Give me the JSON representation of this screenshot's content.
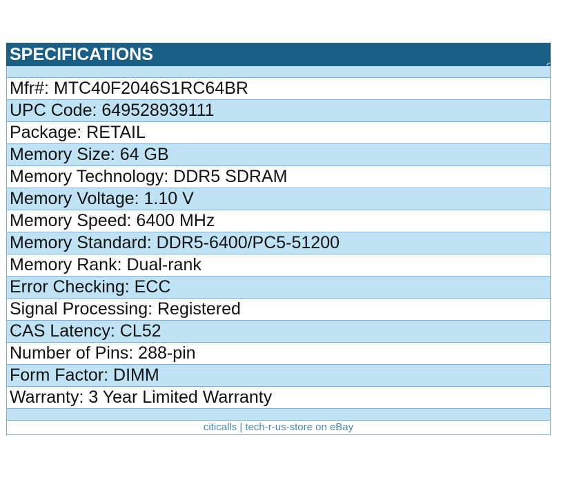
{
  "header": {
    "title": "SPECIFICATIONS"
  },
  "specs": [
    "Mfr#: MTC40F2046S1RC64BR",
    "UPC Code: 649528939111",
    "Package: RETAIL",
    "Memory Size: 64 GB",
    "Memory Technology: DDR5 SDRAM",
    "Memory Voltage: 1.10 V",
    "Memory Speed: 6400 MHz",
    "Memory Standard: DDR5-6400/PC5-51200",
    "Memory Rank: Dual-rank",
    "Error Checking: ECC",
    "Signal Processing: Registered",
    "CAS Latency: CL52",
    "Number of Pins: 288-pin",
    "Form Factor: DIMM",
    "Warranty: 3 Year Limited Warranty"
  ],
  "footer": {
    "text": "citicalls | tech-r-us-store on eBay"
  },
  "colors": {
    "header_bg": "#1b5e86",
    "stripe": "#bfe3f4",
    "footer_text": "#4a87b5",
    "handle": "#1f66cc"
  }
}
